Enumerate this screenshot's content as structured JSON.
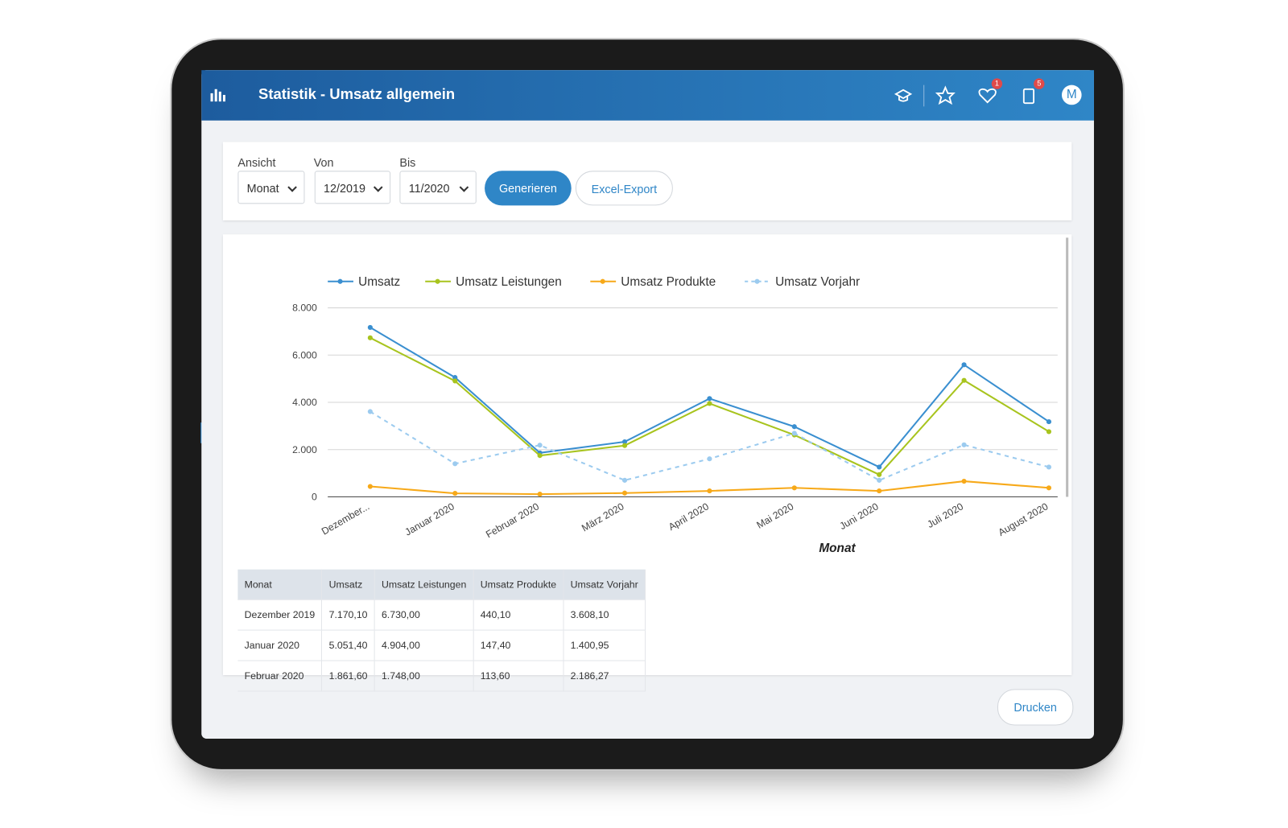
{
  "header": {
    "title": "Statistik - Umsatz allgemein",
    "badges": [
      "1",
      "5"
    ],
    "avatar": "M"
  },
  "filters": [
    {
      "label": "Ansicht",
      "value": "Monat"
    },
    {
      "label": "Von",
      "value": "12/2019"
    },
    {
      "label": "Bis",
      "value": "11/2020"
    }
  ],
  "buttons": {
    "generate": "Generieren",
    "export": "Excel-Export",
    "print": "Drucken"
  },
  "chart_data": {
    "type": "line",
    "x_label": "Monat",
    "categories": [
      "Dezember...",
      "Januar 2020",
      "Februar 2020",
      "März 2020",
      "April 2020",
      "Mai 2020",
      "Juni 2020",
      "Juli 2020",
      "August 2020"
    ],
    "series": [
      {
        "name": "Umsatz",
        "color": "#3a8fd0",
        "values": [
          7170.1,
          5051.4,
          1861.6,
          2330,
          4160,
          2970,
          1260,
          5590,
          3180
        ]
      },
      {
        "name": "Umsatz Leistungen",
        "color": "#a8c41e",
        "values": [
          6730,
          4904,
          1748,
          2170,
          3950,
          2620,
          940,
          4930,
          2760
        ]
      },
      {
        "name": "Umsatz Produkte",
        "color": "#f7a919",
        "values": [
          440.1,
          147.4,
          113.6,
          160,
          250,
          380,
          250,
          660,
          380
        ]
      },
      {
        "name": "Umsatz Vorjahr",
        "color": "#9ccbef",
        "style": "dashed",
        "values": [
          3608.1,
          1400.95,
          2186.27,
          700,
          1610,
          2690,
          700,
          2200,
          1260
        ]
      }
    ],
    "ylim": [
      0,
      8000
    ],
    "yticks": [
      0,
      {
        "value": 2000,
        "label": "2.000"
      },
      {
        "value": 4000,
        "label": "4.000"
      },
      {
        "value": 6000,
        "label": "6.000"
      },
      {
        "value": 8000,
        "label": "8.000"
      }
    ],
    "grid": true,
    "legend": "top"
  },
  "table": {
    "columns": [
      "Monat",
      "Umsatz",
      "Umsatz Leistungen",
      "Umsatz Produkte",
      "Umsatz Vorjahr"
    ],
    "rows": [
      [
        "Dezember 2019",
        "7.170,10",
        "6.730,00",
        "440,10",
        "3.608,10"
      ],
      [
        "Januar 2020",
        "5.051,40",
        "4.904,00",
        "147,40",
        "1.400,95"
      ],
      [
        "Februar 2020",
        "1.861,60",
        "1.748,00",
        "113,60",
        "2.186,27"
      ]
    ]
  }
}
